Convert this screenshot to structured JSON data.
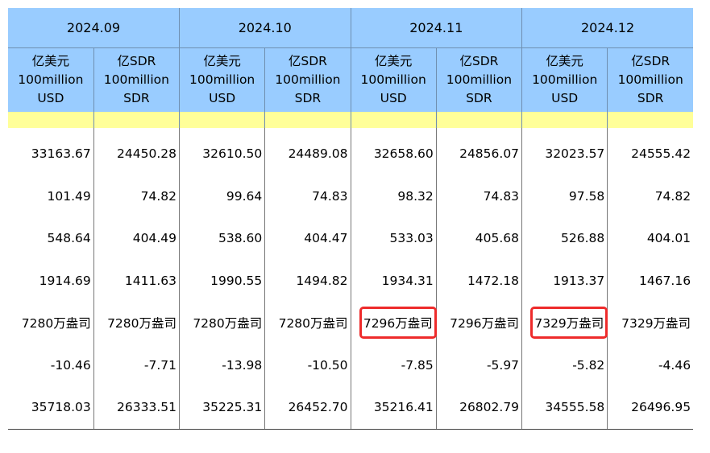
{
  "months": [
    "2024.09",
    "2024.10",
    "2024.11",
    "2024.12"
  ],
  "units": {
    "usd": [
      "亿美元",
      "100million",
      "USD"
    ],
    "sdr": [
      "亿SDR",
      "100million",
      "SDR"
    ]
  },
  "rows": [
    [
      "33163.67",
      "24450.28",
      "32610.50",
      "24489.08",
      "32658.60",
      "24856.07",
      "32023.57",
      "24555.42"
    ],
    [
      "101.49",
      "74.82",
      "99.64",
      "74.83",
      "98.32",
      "74.83",
      "97.58",
      "74.82"
    ],
    [
      "548.64",
      "404.49",
      "538.60",
      "404.47",
      "533.03",
      "405.68",
      "526.88",
      "404.01"
    ],
    [
      "1914.69",
      "1411.63",
      "1990.55",
      "1494.82",
      "1934.31",
      "1472.18",
      "1913.37",
      "1467.16"
    ],
    [
      "7280万盎司",
      "7280万盎司",
      "7280万盎司",
      "7280万盎司",
      "7296万盎司",
      "7296万盎司",
      "7329万盎司",
      "7329万盎司"
    ],
    [
      "-10.46",
      "-7.71",
      "-13.98",
      "-10.50",
      "-7.85",
      "-5.97",
      "-5.82",
      "-4.46"
    ],
    [
      "35718.03",
      "26333.51",
      "35225.31",
      "26452.70",
      "35216.41",
      "26802.79",
      "34555.58",
      "26496.95"
    ]
  ],
  "highlight_color": "#ee2b2b",
  "header_color": "#99ccff",
  "subheader_color": "#ffff99"
}
